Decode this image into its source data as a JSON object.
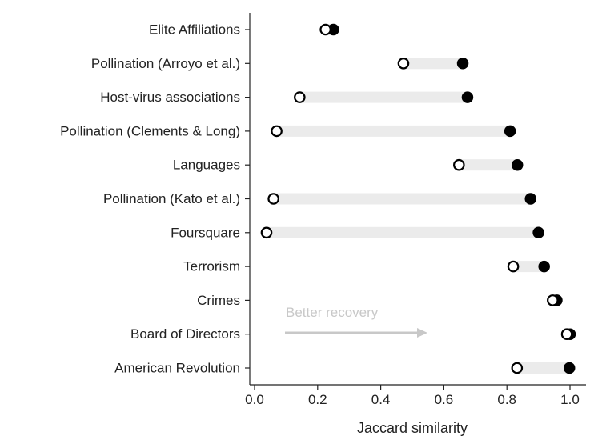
{
  "chart_data": {
    "type": "dumbbell",
    "xlabel": "Jaccard similarity",
    "ylabel": "",
    "xlim": [
      -0.02,
      1.05
    ],
    "xticks": [
      0.0,
      0.2,
      0.4,
      0.6,
      0.8,
      1.0
    ],
    "xtick_labels": [
      "0.0",
      "0.2",
      "0.4",
      "0.6",
      "0.8",
      "1.0"
    ],
    "grid": false,
    "legend": "none",
    "categories": [
      "Elite Affiliations",
      "Pollination (Arroyo et al.)",
      "Host-virus associations",
      "Pollination (Clements & Long)",
      "Languages",
      "Pollination (Kato et al.)",
      "Foursquare",
      "Terrorism",
      "Crimes",
      "Board of Directors",
      "American Revolution"
    ],
    "series": [
      {
        "marker": "open-circle",
        "values": [
          0.225,
          0.472,
          0.143,
          0.07,
          0.648,
          0.06,
          0.038,
          0.82,
          0.945,
          0.99,
          0.832
        ]
      },
      {
        "marker": "filled-circle",
        "values": [
          0.25,
          0.66,
          0.675,
          0.81,
          0.833,
          0.875,
          0.9,
          0.918,
          0.958,
          1.0,
          0.998
        ]
      }
    ],
    "annotation": {
      "text": "Better recovery",
      "arrow": "right",
      "color": "#c8c8c8"
    },
    "colors": {
      "range_bar": "#ebebeb",
      "marker": "#000000",
      "axis": "#222222",
      "annotation": "#c8c8c8"
    }
  }
}
